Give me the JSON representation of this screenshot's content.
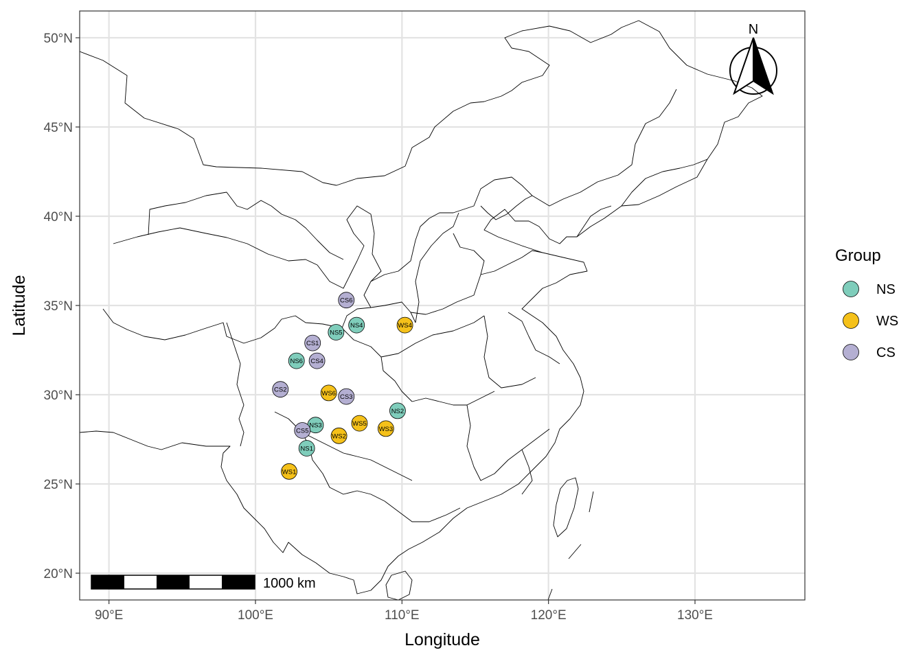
{
  "chart_data": {
    "type": "map",
    "xlabel": "Longitude",
    "ylabel": "Latitude",
    "xlim": [
      88,
      137.5
    ],
    "ylim": [
      18.5,
      51.5
    ],
    "x_ticks": [
      90,
      100,
      110,
      120,
      130
    ],
    "x_tick_labels": [
      "90°E",
      "100°E",
      "110°E",
      "120°E",
      "130°E"
    ],
    "y_ticks": [
      20,
      25,
      30,
      35,
      40,
      45,
      50
    ],
    "y_tick_labels": [
      "20°N",
      "25°N",
      "30°N",
      "35°N",
      "40°N",
      "45°N",
      "50°N"
    ],
    "grid": true,
    "legend": {
      "title": "Group",
      "placement": "right",
      "entries": [
        {
          "label": "NS",
          "color": "#7fcdbb"
        },
        {
          "label": "WS",
          "color": "#f5c11a"
        },
        {
          "label": "CS",
          "color": "#b4afd2"
        }
      ]
    },
    "north_arrow": {
      "label": "N",
      "placement": "top-right"
    },
    "scale_bar": {
      "label": "1000 km",
      "placement": "bottom-left"
    },
    "points": [
      {
        "label": "CS6",
        "group": "CS",
        "lon": 106.2,
        "lat": 35.3
      },
      {
        "label": "NS4",
        "group": "NS",
        "lon": 106.9,
        "lat": 33.9
      },
      {
        "label": "WS4",
        "group": "WS",
        "lon": 110.2,
        "lat": 33.9
      },
      {
        "label": "NS5",
        "group": "NS",
        "lon": 105.5,
        "lat": 33.5
      },
      {
        "label": "CS1",
        "group": "CS",
        "lon": 103.9,
        "lat": 32.9
      },
      {
        "label": "NS6",
        "group": "NS",
        "lon": 102.8,
        "lat": 31.9
      },
      {
        "label": "CS4",
        "group": "CS",
        "lon": 104.2,
        "lat": 31.9
      },
      {
        "label": "CS2",
        "group": "CS",
        "lon": 101.7,
        "lat": 30.3
      },
      {
        "label": "WS6",
        "group": "WS",
        "lon": 105.0,
        "lat": 30.1
      },
      {
        "label": "CS3",
        "group": "CS",
        "lon": 106.2,
        "lat": 29.9
      },
      {
        "label": "NS2",
        "group": "NS",
        "lon": 109.7,
        "lat": 29.1
      },
      {
        "label": "WS5",
        "group": "WS",
        "lon": 107.1,
        "lat": 28.4
      },
      {
        "label": "NS3",
        "group": "NS",
        "lon": 104.1,
        "lat": 28.3
      },
      {
        "label": "WS3",
        "group": "WS",
        "lon": 108.9,
        "lat": 28.1
      },
      {
        "label": "CS5",
        "group": "CS",
        "lon": 103.2,
        "lat": 28.0
      },
      {
        "label": "WS2",
        "group": "WS",
        "lon": 105.7,
        "lat": 27.7
      },
      {
        "label": "NS1",
        "group": "NS",
        "lon": 103.5,
        "lat": 27.0
      },
      {
        "label": "WS1",
        "group": "WS",
        "lon": 102.3,
        "lat": 25.7
      }
    ]
  }
}
